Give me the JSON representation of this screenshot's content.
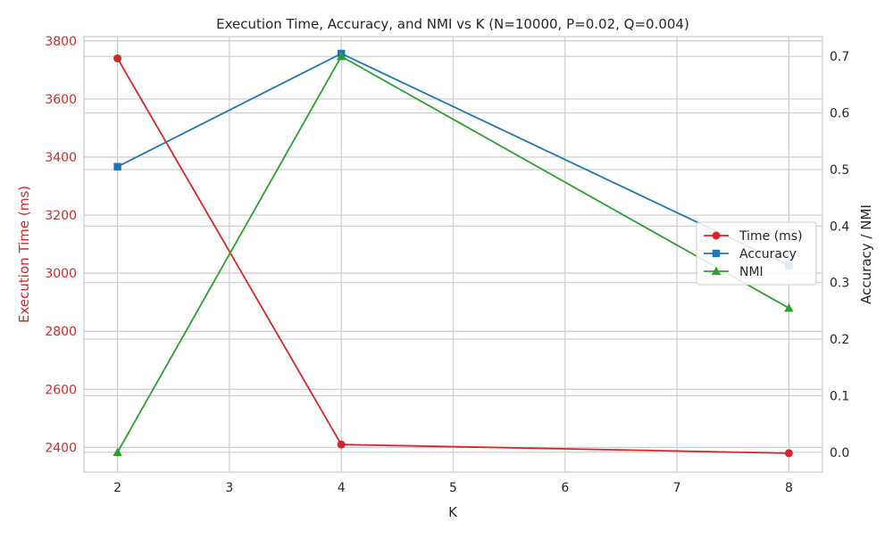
{
  "chart_data": {
    "type": "line",
    "title": "Execution Time, Accuracy, and NMI vs K (N=10000, P=0.02, Q=0.004)",
    "xlabel": "K",
    "ylabel_left": "Execution Time (ms)",
    "ylabel_right": "Accuracy / NMI",
    "x": [
      2,
      4,
      8
    ],
    "x_ticks": [
      "2",
      "3",
      "4",
      "5",
      "6",
      "7",
      "8"
    ],
    "xlim": [
      1.7,
      8.3
    ],
    "ylim_left": [
      2315,
      3815
    ],
    "ylim_right": [
      -0.035,
      0.735
    ],
    "y_ticks_left": [
      "2400",
      "2600",
      "2800",
      "3000",
      "3200",
      "3400",
      "3600",
      "3800"
    ],
    "y_ticks_right": [
      "0.0",
      "0.1",
      "0.2",
      "0.3",
      "0.4",
      "0.5",
      "0.6",
      "0.7"
    ],
    "grid": true,
    "legend_position": "center-right",
    "series": [
      {
        "name": "Time (ms)",
        "axis": "left",
        "values": [
          3740,
          2410,
          2380
        ],
        "color": "#d62728",
        "marker": "circle"
      },
      {
        "name": "Accuracy",
        "axis": "right",
        "values": [
          0.505,
          0.705,
          0.33
        ],
        "color": "#1f77b4",
        "marker": "square"
      },
      {
        "name": "NMI",
        "axis": "right",
        "values": [
          0.0,
          0.7,
          0.255
        ],
        "color": "#2ca02c",
        "marker": "triangle"
      }
    ],
    "colors": {
      "left_axis": "#d62728",
      "text": "#262626",
      "grid": "#cccccc",
      "spine": "#cccccc"
    }
  }
}
